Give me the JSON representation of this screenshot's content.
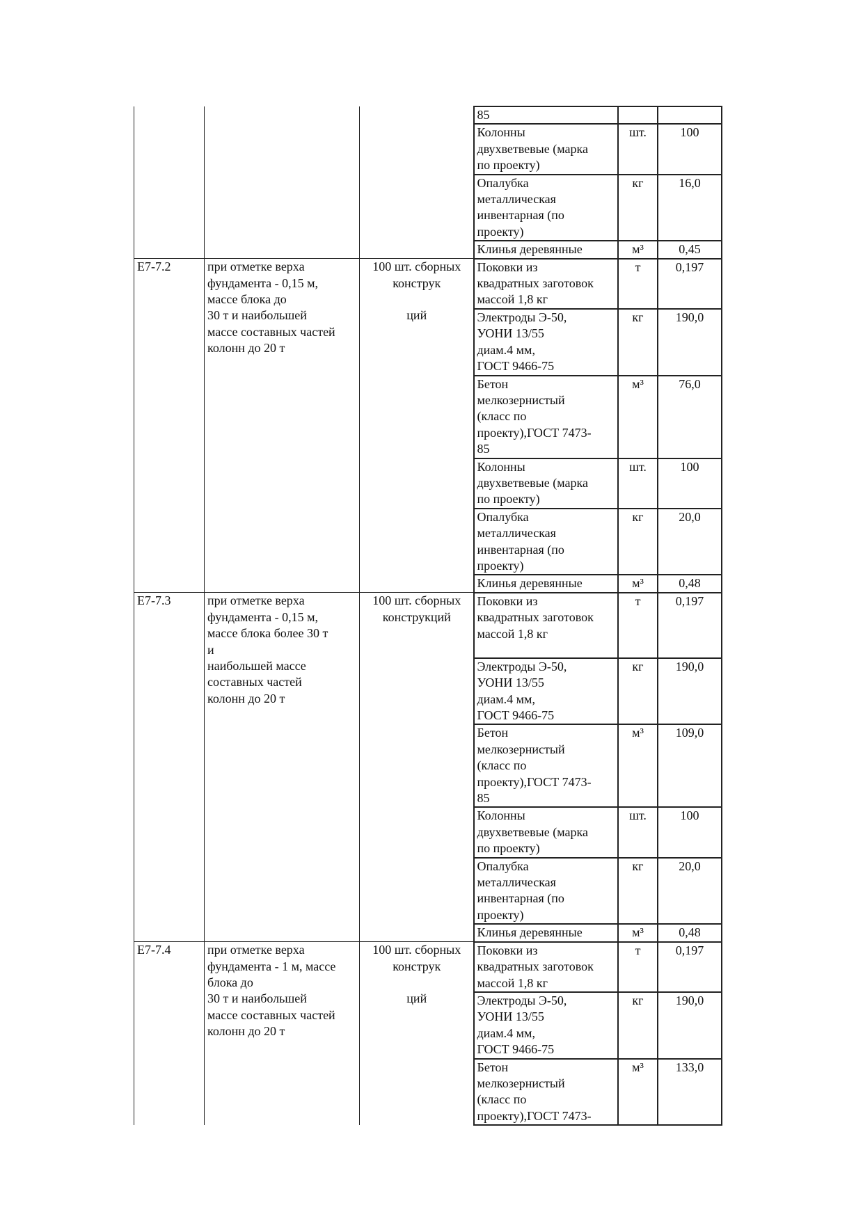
{
  "groups": [
    {
      "code": "",
      "description": "",
      "unit": "",
      "resources": [
        {
          "name": "85",
          "unit": "",
          "qty": ""
        },
        {
          "name": "Колонны\nдвухветвевые (марка\nпо проекту)",
          "unit": "шт.",
          "qty": "100"
        },
        {
          "name": "Опалубка\nметаллическая\nинвентарная (по\nпроекту)",
          "unit": "кг",
          "qty": "16,0"
        },
        {
          "name": "Клинья деревянные",
          "unit": "м³",
          "qty": "0,45"
        }
      ]
    },
    {
      "code": "Е7-7.2",
      "description": "при отметке верха\nфундамента - 0,15 м,\nмассе блока до\n30 т и наибольшей\nмассе составных частей\nколонн до 20 т",
      "unit": "100 шт. сборных\nконструк\n\nций",
      "resources": [
        {
          "name": "Поковки из\nквадратных заготовок\nмассой 1,8 кг",
          "unit": "т",
          "qty": "0,197"
        },
        {
          "name": "Электроды Э-50,\nУОНИ 13/55\nдиам.4 мм,\nГОСТ 9466-75",
          "unit": "кг",
          "qty": "190,0"
        },
        {
          "name": "Бетон\nмелкозернистый\n(класс по\nпроекту),ГОСТ 7473-\n85",
          "unit": "м³",
          "qty": "76,0"
        },
        {
          "name": "Колонны\nдвухветвевые (марка\nпо проекту)",
          "unit": "шт.",
          "qty": "100"
        },
        {
          "name": "Опалубка\nметаллическая\nинвентарная (по\nпроекту)",
          "unit": "кг",
          "qty": "20,0"
        },
        {
          "name": "Клинья деревянные",
          "unit": "м³",
          "qty": "0,48"
        }
      ]
    },
    {
      "code": "Е7-7.3",
      "description": "при отметке верха\nфундамента - 0,15 м,\nмассе блока более 30 т\nи\nнаибольшей массе\nсоставных частей\nколонн до 20 т",
      "unit": "100 шт. сборных\nконструкций",
      "resources": [
        {
          "name": "Поковки из\nквадратных заготовок\nмассой 1,8 кг",
          "unit": "т",
          "qty": "0,197"
        },
        {
          "name": "Электроды Э-50,\nУОНИ 13/55\nдиам.4 мм,\nГОСТ 9466-75",
          "unit": "кг",
          "qty": "190,0"
        },
        {
          "name": "Бетон\nмелкозернистый\n(класс по\nпроекту),ГОСТ 7473-\n85",
          "unit": "м³",
          "qty": "109,0"
        },
        {
          "name": "Колонны\nдвухветвевые (марка\nпо проекту)",
          "unit": "шт.",
          "qty": "100"
        },
        {
          "name": "Опалубка\nметаллическая\nинвентарная (по\nпроекту)",
          "unit": "кг",
          "qty": "20,0"
        },
        {
          "name": "Клинья деревянные",
          "unit": "м³",
          "qty": "0,48"
        }
      ]
    },
    {
      "code": "Е7-7.4",
      "description": "при отметке верха\nфундамента - 1 м, массе\nблока до\n30 т и наибольшей\nмассе составных частей\nколонн до 20 т",
      "unit": "100 шт. сборных\nконструк\n\nций",
      "resources": [
        {
          "name": "Поковки из\nквадратных заготовок\nмассой 1,8 кг",
          "unit": "т",
          "qty": "0,197"
        },
        {
          "name": "Электроды Э-50,\nУОНИ 13/55\nдиам.4 мм,\nГОСТ 9466-75",
          "unit": "кг",
          "qty": "190,0"
        },
        {
          "name": "Бетон\nмелкозернистый\n(класс по\nпроекту),ГОСТ 7473-",
          "unit": "м³",
          "qty": "133,0"
        }
      ]
    }
  ]
}
